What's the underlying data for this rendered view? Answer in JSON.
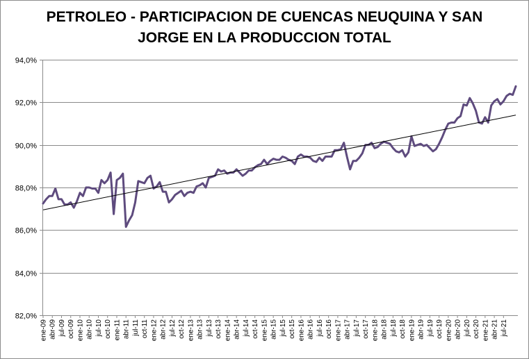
{
  "chart_data": {
    "type": "line",
    "title_lines": [
      "PETROLEO - PARTICIPACION DE CUENCAS NEUQUINA Y SAN",
      "JORGE EN LA PRODUCCION TOTAL"
    ],
    "xlabel": "",
    "ylabel": "",
    "ylim": [
      82,
      94
    ],
    "y_ticks": [
      82,
      84,
      86,
      88,
      90,
      92,
      94
    ],
    "y_tick_labels": [
      "82,0%",
      "84,0%",
      "86,0%",
      "88,0%",
      "90,0%",
      "92,0%",
      "94,0%"
    ],
    "x_tick_labels": [
      "ene-09",
      "abr-09",
      "jul-09",
      "oct-09",
      "ene-10",
      "abr-10",
      "jul-10",
      "oct-10",
      "ene-11",
      "abr-11",
      "jul-11",
      "oct-11",
      "ene-12",
      "abr-12",
      "jul-12",
      "oct-12",
      "ene-13",
      "abr-13",
      "jul-13",
      "oct-13",
      "ene-14",
      "abr-14",
      "jul-14",
      "oct-14",
      "ene-15",
      "abr-15",
      "jul-15",
      "oct-15",
      "ene-16",
      "abr-16",
      "jul-16",
      "oct-16",
      "ene-17",
      "abr-17",
      "jul-17",
      "oct-17",
      "ene-18",
      "abr-18",
      "jul-18",
      "oct-18",
      "ene-19",
      "abr-19",
      "jul-19",
      "oct-19",
      "ene-20",
      "abr-20",
      "jul-20",
      "oct-20",
      "ene-21",
      "abr-21",
      "jul-21"
    ],
    "grid": true,
    "legend": "none",
    "series": [
      {
        "color": "#5e4b7e",
        "values": [
          87.25,
          87.45,
          87.6,
          87.6,
          87.95,
          87.45,
          87.45,
          87.2,
          87.2,
          87.3,
          87.05,
          87.35,
          87.75,
          87.6,
          88.0,
          88.0,
          87.95,
          87.95,
          87.75,
          88.35,
          88.2,
          88.35,
          88.7,
          86.75,
          88.35,
          88.45,
          88.65,
          86.15,
          86.45,
          86.7,
          87.3,
          88.3,
          88.25,
          88.2,
          88.45,
          88.55,
          87.95,
          88.05,
          88.25,
          87.8,
          87.8,
          87.3,
          87.45,
          87.65,
          87.75,
          87.85,
          87.6,
          87.75,
          87.8,
          87.75,
          88.05,
          88.1,
          88.2,
          88.0,
          88.45,
          88.5,
          88.55,
          88.85,
          88.75,
          88.8,
          88.65,
          88.7,
          88.7,
          88.85,
          88.7,
          88.55,
          88.65,
          88.8,
          88.8,
          88.95,
          89.05,
          89.1,
          89.3,
          89.1,
          89.25,
          89.35,
          89.3,
          89.3,
          89.45,
          89.4,
          89.3,
          89.25,
          89.1,
          89.45,
          89.55,
          89.45,
          89.45,
          89.4,
          89.25,
          89.2,
          89.4,
          89.25,
          89.45,
          89.45,
          89.45,
          89.75,
          89.75,
          89.8,
          90.1,
          89.45,
          88.85,
          89.25,
          89.25,
          89.4,
          89.6,
          90.0,
          90.0,
          90.1,
          89.85,
          89.9,
          90.05,
          90.15,
          90.1,
          90.05,
          89.85,
          89.7,
          89.65,
          89.75,
          89.45,
          89.65,
          90.4,
          89.95,
          90.0,
          90.05,
          89.95,
          90.0,
          89.85,
          89.7,
          89.8,
          90.05,
          90.35,
          90.7,
          91.0,
          91.05,
          91.05,
          91.25,
          91.35,
          91.9,
          91.85,
          92.2,
          91.95,
          91.6,
          91.05,
          91.0,
          91.3,
          91.05,
          91.85,
          92.05,
          92.15,
          91.9,
          92.05,
          92.3,
          92.4,
          92.35,
          92.75
        ]
      }
    ],
    "trendline": {
      "type": "linear",
      "color": "#000000",
      "start": 86.95,
      "end": 91.4
    }
  }
}
